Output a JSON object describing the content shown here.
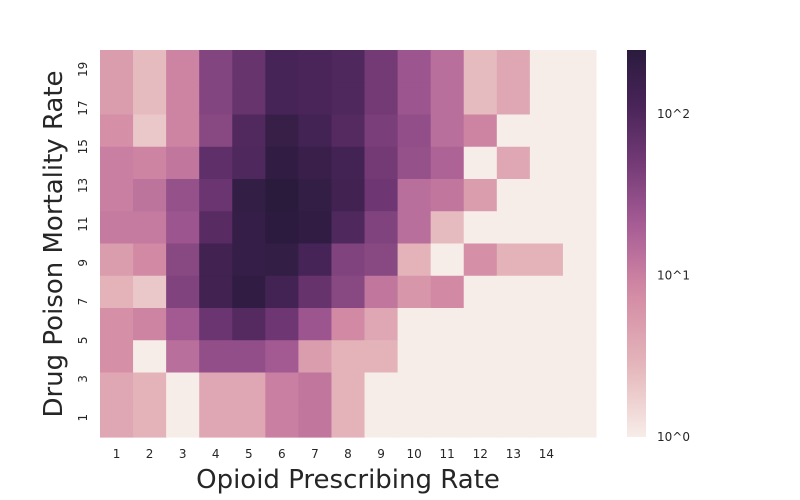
{
  "chart_data": {
    "type": "heatmap",
    "xlabel": "Opioid Prescribing Rate",
    "ylabel": "Drug Poison Mortality Rate",
    "x_tick_labels": [
      "1",
      "2",
      "3",
      "4",
      "5",
      "6",
      "7",
      "8",
      "9",
      "10",
      "11",
      "12",
      "13",
      "14"
    ],
    "y_tick_labels": [
      "1",
      "3",
      "5",
      "7",
      "9",
      "11",
      "13",
      "15",
      "17",
      "19"
    ],
    "n_cols": 15,
    "n_rows": 12,
    "color_scale": "log",
    "colorbar": {
      "ticks": [
        {
          "label": "10^0",
          "value": 1
        },
        {
          "label": "10^1",
          "value": 10
        },
        {
          "label": "10^2",
          "value": 100
        }
      ],
      "min": 1,
      "max": 250
    },
    "colors": {
      "low": "#f7ede8",
      "high": "#2a1b3d"
    },
    "rows_top_to_bottom": [
      [
        5,
        2.5,
        9,
        38,
        63,
        120,
        110,
        100,
        50,
        25,
        14,
        2.5,
        4,
        1,
        1
      ],
      [
        5,
        2.5,
        9,
        38,
        63,
        120,
        110,
        100,
        50,
        25,
        14,
        2.5,
        4,
        1,
        1
      ],
      [
        7,
        2,
        9,
        35,
        95,
        180,
        130,
        90,
        45,
        30,
        14,
        9,
        1,
        1,
        1
      ],
      [
        10,
        9,
        12,
        75,
        100,
        210,
        170,
        130,
        50,
        28,
        18,
        1,
        4,
        1,
        1
      ],
      [
        10,
        13,
        28,
        60,
        200,
        250,
        200,
        140,
        55,
        14,
        12,
        5,
        1,
        1,
        1
      ],
      [
        11,
        11,
        25,
        85,
        190,
        240,
        210,
        100,
        40,
        14,
        2.5,
        1,
        1,
        1,
        1
      ],
      [
        5,
        8,
        35,
        140,
        190,
        200,
        120,
        40,
        35,
        3,
        1,
        7,
        3,
        3,
        1
      ],
      [
        3,
        2,
        40,
        140,
        210,
        130,
        65,
        35,
        12,
        6,
        8,
        1,
        1,
        1,
        1
      ],
      [
        7,
        9,
        22,
        60,
        90,
        55,
        25,
        8,
        4,
        1,
        1,
        1,
        1,
        1,
        1
      ],
      [
        7,
        1,
        14,
        30,
        30,
        22,
        5,
        3,
        3,
        1,
        1,
        1,
        1,
        1,
        1
      ],
      [
        4,
        3,
        1,
        4,
        4,
        10,
        12,
        3,
        1,
        1,
        1,
        1,
        1,
        1,
        1
      ],
      [
        4,
        3,
        1,
        4,
        4,
        10,
        12,
        3,
        1,
        1,
        1,
        1,
        1,
        1,
        1
      ]
    ]
  }
}
